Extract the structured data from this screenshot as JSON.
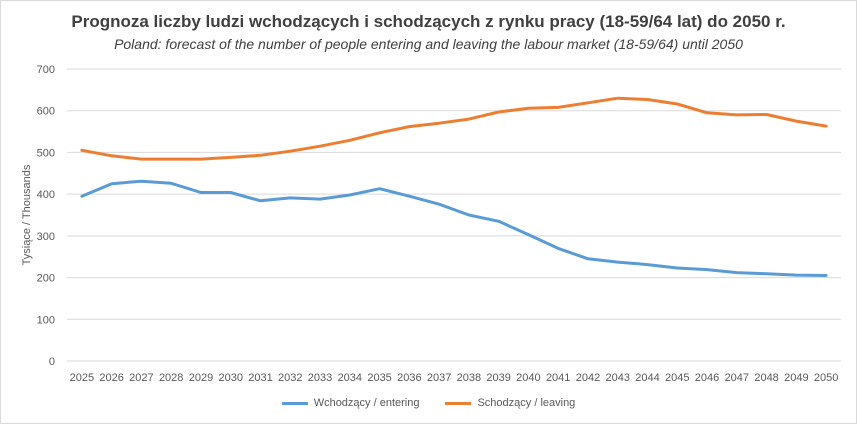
{
  "chart_data": {
    "type": "line",
    "title": "Prognoza liczby ludzi wchodzących i schodzących z rynku pracy (18-59/64 lat) do 2050 r.",
    "subtitle": "Poland: forecast of the number of people entering and leaving the labour market (18-59/64) until 2050",
    "xlabel": "",
    "ylabel": "Tysiące / Thousands",
    "ylim": [
      0,
      700
    ],
    "yticks": [
      "0",
      "100",
      "200",
      "300",
      "400",
      "500",
      "600",
      "700"
    ],
    "grid": true,
    "legend_position": "bottom",
    "categories": [
      "2025",
      "2026",
      "2027",
      "2028",
      "2029",
      "2030",
      "2031",
      "2032",
      "2033",
      "2034",
      "2035",
      "2036",
      "2037",
      "2038",
      "2039",
      "2040",
      "2041",
      "2042",
      "2043",
      "2044",
      "2045",
      "2046",
      "2047",
      "2048",
      "2049",
      "2050"
    ],
    "series": [
      {
        "name": "Wchodzący / entering",
        "color": "#5b9bd5",
        "values": [
          395,
          425,
          431,
          426,
          404,
          404,
          384,
          391,
          388,
          398,
          413,
          395,
          376,
          350,
          335,
          303,
          270,
          245,
          237,
          231,
          223,
          219,
          212,
          209,
          206,
          205
        ]
      },
      {
        "name": "Schodzący / leaving",
        "color": "#ed7d31",
        "values": [
          505,
          492,
          484,
          484,
          484,
          488,
          493,
          503,
          515,
          529,
          547,
          562,
          570,
          580,
          597,
          606,
          608,
          619,
          630,
          627,
          616,
          595,
          590,
          591,
          575,
          563
        ]
      }
    ]
  }
}
